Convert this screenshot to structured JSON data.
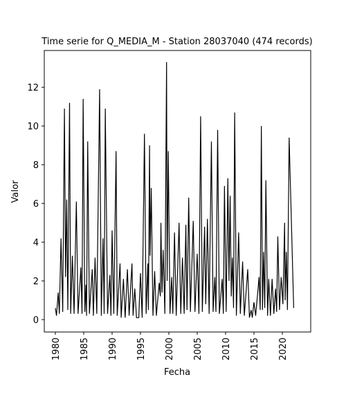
{
  "chart_data": {
    "type": "line",
    "title": "Time serie for Q_MEDIA_M - Station 28037040 (474 records)",
    "xlabel": "Fecha",
    "ylabel": "Valor",
    "x": [
      1980.0,
      1980.2,
      1980.5,
      1980.7,
      1981.0,
      1981.3,
      1981.6,
      1981.8,
      1982.0,
      1982.2,
      1982.5,
      1982.7,
      1983.0,
      1983.3,
      1983.7,
      1984.0,
      1984.5,
      1984.7,
      1984.9,
      1985.2,
      1985.4,
      1985.5,
      1985.7,
      1986.0,
      1986.5,
      1986.7,
      1987.0,
      1987.3,
      1987.8,
      1988.1,
      1988.4,
      1988.6,
      1988.8,
      1989.2,
      1989.6,
      1989.8,
      1990.0,
      1990.3,
      1990.7,
      1990.9,
      1991.4,
      1991.6,
      1992.0,
      1992.3,
      1992.7,
      1993.0,
      1993.5,
      1993.7,
      1994.0,
      1994.3,
      1994.7,
      1995.0,
      1995.3,
      1995.7,
      1996.0,
      1996.3,
      1996.4,
      1996.6,
      1996.7,
      1996.9,
      1997.2,
      1997.5,
      1997.8,
      1998.3,
      1998.5,
      1998.6,
      1998.8,
      1999.0,
      1999.3,
      1999.6,
      1999.7,
      1999.9,
      2000.2,
      2000.5,
      2000.7,
      2001.0,
      2001.3,
      2001.8,
      2002.1,
      2002.4,
      2002.7,
      2003.0,
      2003.2,
      2003.5,
      2003.8,
      2004.3,
      2004.6,
      2005.0,
      2005.3,
      2005.6,
      2005.9,
      2006.3,
      2006.5,
      2006.8,
      2007.1,
      2007.5,
      2007.8,
      2008.1,
      2008.3,
      2008.6,
      2008.9,
      2009.4,
      2009.6,
      2009.8,
      2010.1,
      2010.4,
      2010.6,
      2010.8,
      2011.0,
      2011.2,
      2011.4,
      2011.6,
      2011.9,
      2012.3,
      2012.6,
      2013.0,
      2013.3,
      2013.9,
      2014.2,
      2014.5,
      2014.7,
      2015.0,
      2015.3,
      2015.9,
      2016.1,
      2016.3,
      2016.5,
      2016.7,
      2016.9,
      2017.1,
      2017.4,
      2017.6,
      2017.9,
      2018.2,
      2018.5,
      2018.8,
      2019.0,
      2019.2,
      2019.5,
      2019.8,
      2020.1,
      2020.4,
      2020.5,
      2020.7,
      2020.9,
      2021.2,
      2022.0
    ],
    "series": [
      {
        "name": "Q_MEDIA_M",
        "color": "#000000",
        "values": [
          0.6,
          0.2,
          1.4,
          0.3,
          4.2,
          0.4,
          10.9,
          2.2,
          6.2,
          0.5,
          11.2,
          0.3,
          3.3,
          0.3,
          6.1,
          0.3,
          2.7,
          0.3,
          11.4,
          0.4,
          1.8,
          0.2,
          9.2,
          0.3,
          2.6,
          0.2,
          3.2,
          0.3,
          11.9,
          0.2,
          4.2,
          0.3,
          10.9,
          0.3,
          2.3,
          0.2,
          4.6,
          0.3,
          8.7,
          0.2,
          2.9,
          0.1,
          2.1,
          0.1,
          2.6,
          0.2,
          2.9,
          0.2,
          1.6,
          0.1,
          0.1,
          2.4,
          0.1,
          9.6,
          0.3,
          2.9,
          0.5,
          9.0,
          3.3,
          6.8,
          0.2,
          2.5,
          0.2,
          1.9,
          1.2,
          5.0,
          1.4,
          3.6,
          0.3,
          13.3,
          2.0,
          8.7,
          0.3,
          2.2,
          0.3,
          4.5,
          0.2,
          5.0,
          0.3,
          3.2,
          0.3,
          4.9,
          0.5,
          6.3,
          0.4,
          5.1,
          0.4,
          3.4,
          0.3,
          10.5,
          0.4,
          4.8,
          0.8,
          5.2,
          0.3,
          9.2,
          0.4,
          2.2,
          0.4,
          9.8,
          0.3,
          2.1,
          0.3,
          6.9,
          0.4,
          7.3,
          2.0,
          6.4,
          1.2,
          3.2,
          0.6,
          10.7,
          0.2,
          4.5,
          0.3,
          3.0,
          0.2,
          2.6,
          0.1,
          0.5,
          0.1,
          0.9,
          0.2,
          2.2,
          0.5,
          10.0,
          0.5,
          3.5,
          0.6,
          7.2,
          0.2,
          2.1,
          0.2,
          2.1,
          0.3,
          1.6,
          0.4,
          4.3,
          0.5,
          2.2,
          0.8,
          5.0,
          1.0,
          3.5,
          0.5,
          9.4,
          0.6
        ]
      }
    ],
    "xlim": [
      1978.05,
      2025.0
    ],
    "xticks": [
      1980,
      1985,
      1990,
      1995,
      2000,
      2005,
      2010,
      2015,
      2020
    ],
    "ylim": [
      -0.64,
      13.9
    ],
    "yticks": [
      0,
      2,
      4,
      6,
      8,
      10,
      12
    ]
  }
}
